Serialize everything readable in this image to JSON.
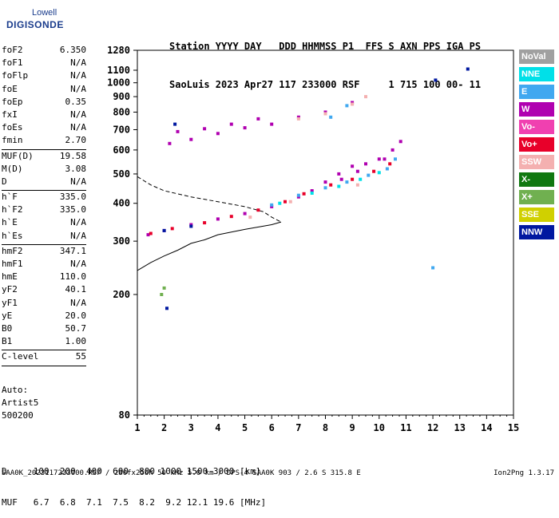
{
  "logo": {
    "brand": "Lowell",
    "product": "DIGISONDE"
  },
  "header": {
    "line1": "Station YYYY DAY   DDD HHMMSS P1  FFS S AXN PPS IGA PS",
    "line2": "SaoLuis 2023 Apr27 117 233000 RSF     1 715 100 00- 11"
  },
  "params": [
    {
      "label": "foF2",
      "value": "6.350"
    },
    {
      "label": "foF1",
      "value": "N/A"
    },
    {
      "label": "foFlp",
      "value": "N/A"
    },
    {
      "label": "foE",
      "value": "N/A"
    },
    {
      "label": "foEp",
      "value": "0.35"
    },
    {
      "label": "fxI",
      "value": "N/A"
    },
    {
      "label": "foEs",
      "value": "N/A"
    },
    {
      "label": "fmin",
      "value": "2.70",
      "sep": true
    },
    {
      "label": "MUF(D)",
      "value": "19.58"
    },
    {
      "label": "M(D)",
      "value": "3.08"
    },
    {
      "label": "D",
      "value": "N/A",
      "sep": true
    },
    {
      "label": "h`F",
      "value": "335.0"
    },
    {
      "label": "h`F2",
      "value": "335.0"
    },
    {
      "label": "h`E",
      "value": "N/A"
    },
    {
      "label": "h`Es",
      "value": "N/A",
      "sep": true
    },
    {
      "label": "hmF2",
      "value": "347.1"
    },
    {
      "label": "hmF1",
      "value": "N/A"
    },
    {
      "label": "hmE",
      "value": "110.0"
    },
    {
      "label": "yF2",
      "value": "40.1"
    },
    {
      "label": "yF1",
      "value": "N/A"
    },
    {
      "label": "yE",
      "value": "20.0"
    },
    {
      "label": "B0",
      "value": "50.7"
    },
    {
      "label": "B1",
      "value": "1.00",
      "sep": true
    },
    {
      "label": "C-level",
      "value": "55",
      "sep": true
    }
  ],
  "auto": {
    "line1": "Auto:",
    "line2": "Artist5",
    "line3": "500200"
  },
  "legend": [
    {
      "label": "NoVal",
      "color": "#a0a0a0"
    },
    {
      "label": "NNE",
      "color": "#00e0e8"
    },
    {
      "label": "E",
      "color": "#40a8f0"
    },
    {
      "label": "W",
      "color": "#b000b0"
    },
    {
      "label": "Vo-",
      "color": "#f040b0"
    },
    {
      "label": "Vo+",
      "color": "#e8002a"
    },
    {
      "label": "SSW",
      "color": "#f4b0b0"
    },
    {
      "label": "X-",
      "color": "#107810"
    },
    {
      "label": "X+",
      "color": "#70b050"
    },
    {
      "label": "SSE",
      "color": "#d0d000"
    },
    {
      "label": "NNW",
      "color": "#0018a0"
    }
  ],
  "bottom": {
    "line1": "D     100  200  400  600  800 1000 1500 3000 [km]",
    "line2": "MUF   6.7  6.8  7.1  7.5  8.2  9.2 12.1 19.6 [MHz]"
  },
  "footer": {
    "left": "SAA0K_2023117233000.RSF / 280fx256h 50 kHz 5.0 km / DPS-4 SAA0K 903 / 2.6 S 315.8 E",
    "right": "Ion2Png 1.3.17"
  },
  "chart_data": {
    "type": "scatter",
    "xlim": [
      1,
      15
    ],
    "ylim": [
      80,
      1280
    ],
    "x_ticks": [
      1,
      2,
      3,
      4,
      5,
      6,
      7,
      8,
      9,
      10,
      11,
      12,
      13,
      14,
      15
    ],
    "y_ticks": [
      80,
      200,
      300,
      400,
      500,
      600,
      700,
      800,
      900,
      1000,
      1100,
      1280
    ],
    "y_scale": "log",
    "series": [
      {
        "name": "W",
        "color": "#b000b0",
        "points": [
          [
            1.4,
            315
          ],
          [
            2,
            325
          ],
          [
            3,
            340
          ],
          [
            4,
            355
          ],
          [
            5,
            370
          ],
          [
            6,
            390
          ],
          [
            7,
            420
          ],
          [
            7.5,
            440
          ],
          [
            8,
            470
          ],
          [
            8.5,
            500
          ],
          [
            9,
            530
          ],
          [
            9.5,
            540
          ],
          [
            10,
            560
          ],
          [
            10.5,
            600
          ],
          [
            10.8,
            640
          ],
          [
            2.2,
            630
          ],
          [
            3,
            650
          ],
          [
            4,
            680
          ],
          [
            5,
            710
          ],
          [
            6,
            730
          ],
          [
            7,
            770
          ],
          [
            8,
            800
          ],
          [
            9,
            860
          ],
          [
            2.5,
            690
          ],
          [
            3.5,
            705
          ],
          [
            4.5,
            730
          ],
          [
            5.5,
            760
          ],
          [
            8.6,
            480
          ],
          [
            9.2,
            510
          ],
          [
            10.2,
            560
          ]
        ]
      },
      {
        "name": "Vo+",
        "color": "#e8002a",
        "points": [
          [
            1.5,
            318
          ],
          [
            2.3,
            330
          ],
          [
            3.5,
            345
          ],
          [
            4.5,
            362
          ],
          [
            5.5,
            380
          ],
          [
            6.5,
            405
          ],
          [
            7.2,
            430
          ],
          [
            8.2,
            460
          ],
          [
            9,
            480
          ],
          [
            9.8,
            510
          ],
          [
            10.4,
            540
          ]
        ]
      },
      {
        "name": "E",
        "color": "#40a8f0",
        "points": [
          [
            6,
            395
          ],
          [
            7,
            425
          ],
          [
            8,
            450
          ],
          [
            8.8,
            470
          ],
          [
            9.6,
            495
          ],
          [
            10.3,
            520
          ],
          [
            10.6,
            560
          ],
          [
            8.2,
            770
          ],
          [
            8.8,
            840
          ],
          [
            12,
            245
          ]
        ]
      },
      {
        "name": "NNE",
        "color": "#00e0e8",
        "points": [
          [
            6.3,
            400
          ],
          [
            7.5,
            432
          ],
          [
            8.5,
            455
          ],
          [
            9.3,
            480
          ],
          [
            10,
            505
          ]
        ]
      },
      {
        "name": "SSW",
        "color": "#f4b0b0",
        "points": [
          [
            7,
            760
          ],
          [
            8,
            790
          ],
          [
            9,
            850
          ],
          [
            9.5,
            900
          ],
          [
            5.2,
            360
          ],
          [
            6.7,
            405
          ],
          [
            9.2,
            460
          ]
        ]
      },
      {
        "name": "NNW",
        "color": "#0018a0",
        "points": [
          [
            2,
            325
          ],
          [
            3,
            336
          ],
          [
            2.4,
            730
          ],
          [
            12.1,
            1020
          ],
          [
            13.3,
            1110
          ],
          [
            2.1,
            180
          ]
        ]
      },
      {
        "name": "X+",
        "color": "#70b050",
        "points": [
          [
            1.9,
            200
          ],
          [
            2,
            210
          ]
        ]
      }
    ],
    "curves": [
      {
        "name": "profile",
        "style": "solid",
        "points": [
          [
            1,
            240
          ],
          [
            1.5,
            255
          ],
          [
            2,
            268
          ],
          [
            2.5,
            280
          ],
          [
            3,
            295
          ],
          [
            3.5,
            303
          ],
          [
            4,
            315
          ],
          [
            5,
            328
          ],
          [
            6,
            340
          ],
          [
            6.35,
            347
          ]
        ]
      },
      {
        "name": "echo",
        "style": "dashed",
        "points": [
          [
            1,
            490
          ],
          [
            1.5,
            460
          ],
          [
            2,
            440
          ],
          [
            3,
            420
          ],
          [
            4,
            405
          ],
          [
            5,
            390
          ],
          [
            5.7,
            375
          ],
          [
            6,
            360
          ],
          [
            6.35,
            347
          ]
        ]
      }
    ]
  }
}
